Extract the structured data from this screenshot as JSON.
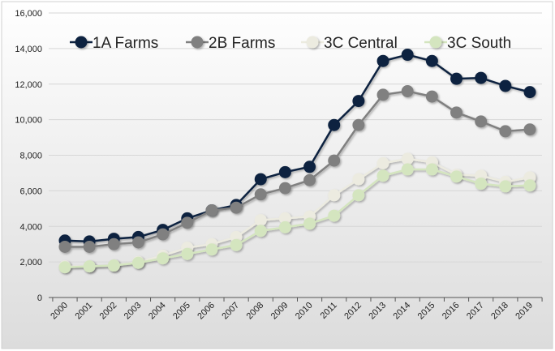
{
  "chart_data": {
    "type": "line",
    "title": "",
    "xlabel": "",
    "ylabel": "",
    "ylim": [
      0,
      16000
    ],
    "yticks": [
      "0",
      "2,000",
      "4,000",
      "6,000",
      "8,000",
      "10,000",
      "12,000",
      "14,000",
      "16,000"
    ],
    "ytick_values": [
      0,
      2000,
      4000,
      6000,
      8000,
      10000,
      12000,
      14000,
      16000
    ],
    "grid": true,
    "legend_position": "top",
    "categories": [
      "2000",
      "2001",
      "2002",
      "2003",
      "2004",
      "2005",
      "2006",
      "2007",
      "2008",
      "2009",
      "2010",
      "2011",
      "2012",
      "2013",
      "2014",
      "2015",
      "2016",
      "2017",
      "2018",
      "2019"
    ],
    "series": [
      {
        "name": "1A Farms",
        "color": "#0e2340",
        "values": [
          3200,
          3150,
          3300,
          3400,
          3800,
          4450,
          4900,
          5200,
          6650,
          7050,
          7350,
          9700,
          11050,
          13300,
          13650,
          13300,
          12300,
          12350,
          11900,
          11550
        ]
      },
      {
        "name": "2B Farms",
        "color": "#808080",
        "values": [
          2850,
          2850,
          3000,
          3100,
          3550,
          4200,
          4900,
          5050,
          5800,
          6150,
          6600,
          7700,
          9700,
          11400,
          11600,
          11300,
          10400,
          9900,
          9350,
          9450
        ]
      },
      {
        "name": "3C Central",
        "color": "#ecebe0",
        "values": [
          1750,
          1750,
          1800,
          2000,
          2350,
          2800,
          3000,
          3400,
          4350,
          4450,
          4550,
          5750,
          6650,
          7550,
          7800,
          7600,
          6900,
          6850,
          6500,
          6750
        ]
      },
      {
        "name": "3C South",
        "color": "#d4e5bf",
        "values": [
          1700,
          1750,
          1800,
          1950,
          2200,
          2450,
          2700,
          2950,
          3750,
          3950,
          4150,
          4600,
          5750,
          6850,
          7200,
          7200,
          6800,
          6400,
          6250,
          6300
        ]
      }
    ]
  }
}
